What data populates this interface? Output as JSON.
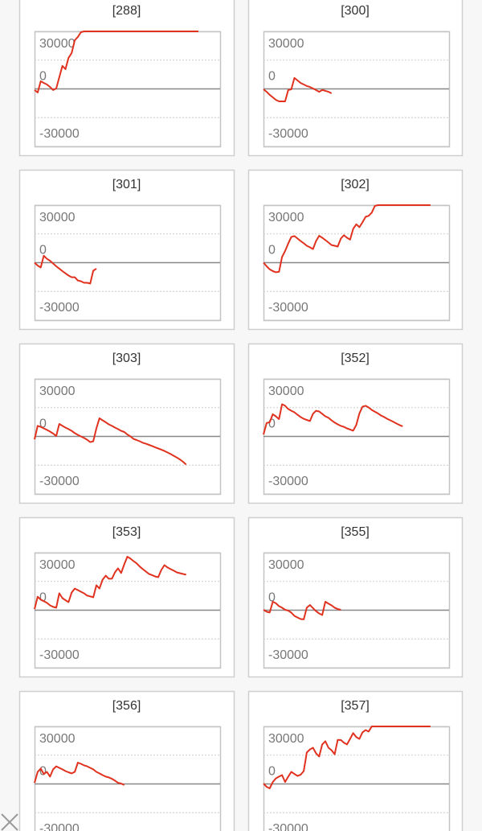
{
  "chart_data": [
    {
      "type": "line",
      "title": "[288]",
      "color": "#e0321f",
      "xlim": [
        0,
        60
      ],
      "ylim": [
        -30000,
        30000
      ],
      "yticks": [
        -30000,
        0,
        30000
      ],
      "values": [
        -600,
        -1900,
        4000,
        3100,
        2300,
        1000,
        -600,
        200,
        6100,
        12000,
        10300,
        16200,
        18700,
        25400,
        27100,
        29600,
        30000,
        30000,
        30000,
        30000,
        30000,
        30000,
        30000,
        30000,
        30000,
        30000,
        30000,
        30000,
        30000,
        30000,
        30000,
        30000,
        30000,
        30000,
        30000,
        30000,
        30000,
        30000,
        30000,
        30000,
        30000,
        30000,
        30000,
        30000,
        30000,
        30000,
        30000,
        30000,
        30000,
        30000,
        30000,
        30000,
        30000,
        30000
      ]
    },
    {
      "type": "line",
      "title": "[300]",
      "color": "#e0321f",
      "xlim": [
        0,
        60
      ],
      "ylim": [
        -30000,
        30000
      ],
      "yticks": [
        -30000,
        0,
        30000
      ],
      "values": [
        -200,
        -1500,
        -3100,
        -4400,
        -5700,
        -6500,
        -6500,
        -6500,
        -600,
        -200,
        5700,
        4400,
        3100,
        2300,
        1500,
        1000,
        200,
        -600,
        -1500,
        -600,
        -1000,
        -1500,
        -2300
      ]
    },
    {
      "type": "line",
      "title": "[301]",
      "color": "#e0321f",
      "xlim": [
        0,
        60
      ],
      "ylim": [
        -30000,
        30000
      ],
      "yticks": [
        -30000,
        0,
        30000
      ],
      "values": [
        0,
        -1500,
        -2500,
        3600,
        2000,
        1000,
        -400,
        -1900,
        -3100,
        -4400,
        -5600,
        -6700,
        -7600,
        -7600,
        -9300,
        -9700,
        -10500,
        -10500,
        -10900,
        -4200,
        -3100
      ]
    },
    {
      "type": "line",
      "title": "[302]",
      "color": "#e0321f",
      "xlim": [
        0,
        60
      ],
      "ylim": [
        -30000,
        30000
      ],
      "yticks": [
        -30000,
        0,
        30000
      ],
      "values": [
        0,
        -1900,
        -3500,
        -4400,
        -5000,
        -4800,
        3000,
        6100,
        10000,
        13400,
        13900,
        12600,
        11300,
        10100,
        8800,
        8000,
        7100,
        11300,
        14000,
        13000,
        11800,
        10500,
        9200,
        8800,
        8400,
        12600,
        14300,
        13000,
        12000,
        17600,
        20000,
        18500,
        21000,
        23900,
        24400,
        26100,
        29600,
        30000,
        30000,
        30000,
        30000,
        30000,
        30000,
        30000,
        30000,
        30000,
        30000,
        30000,
        30000,
        30000,
        30000,
        30000,
        30000,
        30000,
        30000
      ]
    },
    {
      "type": "line",
      "title": "[303]",
      "color": "#e0321f",
      "xlim": [
        0,
        60
      ],
      "ylim": [
        -30000,
        30000
      ],
      "yticks": [
        -30000,
        0,
        30000
      ],
      "values": [
        -1500,
        5500,
        5000,
        4200,
        3400,
        2500,
        1500,
        200,
        6500,
        5500,
        4600,
        3800,
        2900,
        1700,
        800,
        0,
        -800,
        -1700,
        -3000,
        -2500,
        4200,
        9500,
        8400,
        7400,
        6300,
        5500,
        4600,
        3800,
        2900,
        2300,
        1000,
        0,
        -1300,
        -1900,
        -2500,
        -3300,
        -3800,
        -4400,
        -5000,
        -5700,
        -6300,
        -6900,
        -7600,
        -8400,
        -9200,
        -10100,
        -11000,
        -12000,
        -13200,
        -14700
      ]
    },
    {
      "type": "line",
      "title": "[352]",
      "color": "#e0321f",
      "xlim": [
        0,
        60
      ],
      "ylim": [
        -30000,
        30000
      ],
      "yticks": [
        -30000,
        0,
        30000
      ],
      "values": [
        1000,
        7000,
        7400,
        11600,
        10500,
        9000,
        16800,
        16000,
        14300,
        13400,
        12600,
        11300,
        10100,
        9200,
        8600,
        8000,
        11800,
        13400,
        13000,
        11800,
        10500,
        9700,
        8400,
        7200,
        6300,
        5500,
        5000,
        4200,
        3600,
        3000,
        6000,
        12000,
        15500,
        16000,
        15100,
        13800,
        12900,
        12000,
        10900,
        10100,
        9200,
        8400,
        7600,
        6700,
        5900,
        5300
      ]
    },
    {
      "type": "line",
      "title": "[353]",
      "color": "#e0321f",
      "xlim": [
        0,
        60
      ],
      "ylim": [
        -30000,
        30000
      ],
      "yticks": [
        -30000,
        0,
        30000
      ],
      "values": [
        600,
        7000,
        5500,
        4700,
        3800,
        2500,
        1700,
        1300,
        8800,
        6300,
        5200,
        4200,
        9200,
        11300,
        10500,
        9600,
        8800,
        7600,
        7200,
        6700,
        13000,
        11300,
        15900,
        18000,
        16400,
        16400,
        19700,
        21800,
        19400,
        23900,
        27900,
        26900,
        25600,
        24400,
        22800,
        21400,
        20200,
        18900,
        18300,
        17600,
        17200,
        21000,
        23500,
        22300,
        21400,
        20600,
        19700,
        19300,
        18900,
        18500
      ]
    },
    {
      "type": "line",
      "title": "[355]",
      "color": "#e0321f",
      "xlim": [
        0,
        60
      ],
      "ylim": [
        -30000,
        30000
      ],
      "yticks": [
        -30000,
        0,
        30000
      ],
      "values": [
        200,
        -800,
        -1200,
        4400,
        3600,
        2100,
        1300,
        200,
        -200,
        -1300,
        -3000,
        -3800,
        -4600,
        -4800,
        1300,
        2700,
        1100,
        -500,
        -1700,
        -2500,
        4400,
        3400,
        2500,
        1300,
        600,
        200
      ]
    },
    {
      "type": "line",
      "title": "[356]",
      "color": "#e0321f",
      "xlim": [
        0,
        60
      ],
      "ylim": [
        -30000,
        30000
      ],
      "yticks": [
        -30000,
        0,
        30000
      ],
      "values": [
        600,
        6300,
        8000,
        5200,
        6300,
        3800,
        7600,
        9200,
        8400,
        7600,
        6700,
        6100,
        5500,
        6300,
        11100,
        10500,
        9700,
        9200,
        8400,
        7600,
        6300,
        5500,
        4600,
        3800,
        3400,
        2700,
        1700,
        600,
        200,
        -600
      ]
    },
    {
      "type": "line",
      "title": "[357]",
      "color": "#e0321f",
      "xlim": [
        0,
        60
      ],
      "ylim": [
        -30000,
        30000
      ],
      "yticks": [
        -30000,
        0,
        30000
      ],
      "values": [
        200,
        -1500,
        -2300,
        1000,
        2900,
        3800,
        4600,
        1000,
        3800,
        6300,
        5200,
        4200,
        4800,
        6700,
        16400,
        18000,
        18900,
        16000,
        14300,
        20600,
        22300,
        18900,
        17600,
        15500,
        23000,
        22900,
        21500,
        20600,
        23500,
        26500,
        24400,
        23500,
        26900,
        28100,
        27300,
        30000,
        30000,
        30000,
        30000,
        30000,
        30000,
        30000,
        30000,
        30000,
        30000,
        30000,
        30000,
        30000,
        30000,
        30000,
        30000,
        30000,
        30000,
        30000,
        30000
      ]
    }
  ]
}
